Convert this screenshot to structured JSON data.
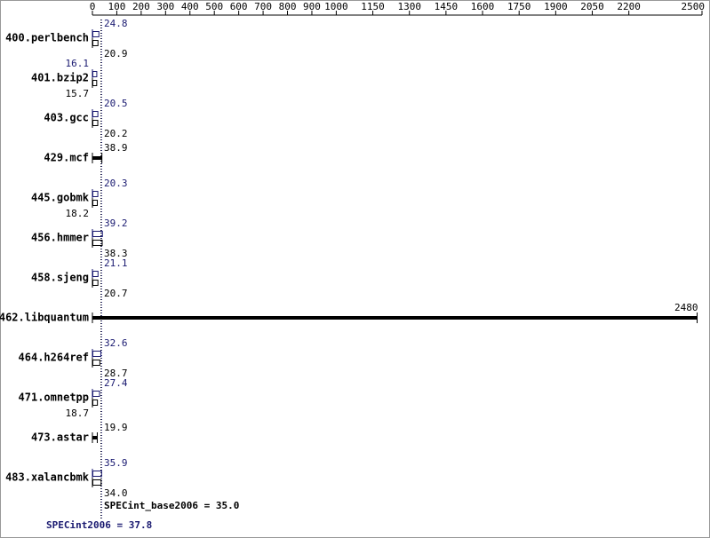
{
  "chart_data": {
    "type": "bar",
    "orientation": "horizontal",
    "categories": [
      "400.perlbench",
      "401.bzip2",
      "403.gcc",
      "429.mcf",
      "445.gobmk",
      "456.hmmer",
      "458.sjeng",
      "462.libquantum",
      "464.h264ref",
      "471.omnetpp",
      "473.astar",
      "483.xalancbmk"
    ],
    "series": [
      {
        "name": "SPECint2006",
        "color": "#191970",
        "values": [
          24.8,
          16.1,
          20.5,
          null,
          20.3,
          39.2,
          21.1,
          null,
          32.6,
          27.4,
          null,
          35.9
        ],
        "value_labels": [
          "24.8",
          "16.1",
          "20.5",
          null,
          "20.3",
          "39.2",
          "21.1",
          null,
          "32.6",
          "27.4",
          null,
          "35.9"
        ]
      },
      {
        "name": "SPECint_base2006",
        "color": "#000000",
        "values": [
          20.9,
          15.7,
          20.2,
          38.9,
          18.2,
          38.3,
          20.7,
          2480,
          28.7,
          18.7,
          19.9,
          34.0
        ],
        "value_labels": [
          "20.9",
          "15.7",
          "20.2",
          "38.9",
          "18.2",
          "38.3",
          "20.7",
          "2480",
          "28.7",
          "18.7",
          "19.9",
          "34.0"
        ]
      }
    ],
    "xlim": [
      0,
      2500
    ],
    "xticks": [
      0,
      100,
      200,
      300,
      400,
      500,
      600,
      700,
      800,
      900,
      1000,
      1150,
      1300,
      1450,
      1600,
      1750,
      1900,
      2050,
      2200,
      2500
    ],
    "annotations": [
      {
        "text": "SPECint_base2006 = 35.0",
        "value": 35.0,
        "color": "#000000"
      },
      {
        "text": "SPECint2006 = 37.8",
        "value": 37.8,
        "color": "#191970"
      }
    ]
  }
}
